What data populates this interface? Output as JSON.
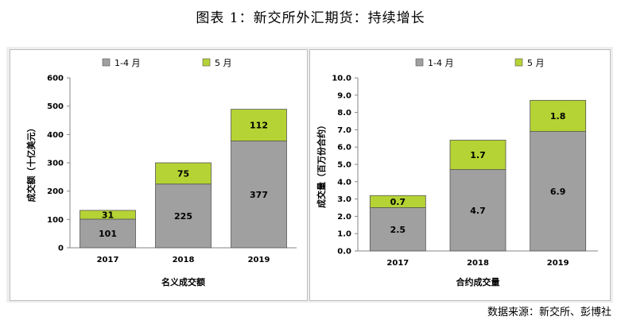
{
  "page": {
    "title": "图表 1：新交所外汇期货：持续增长",
    "source": "数据来源：新交所、彭博社"
  },
  "colors": {
    "series_1_4": "#a0a0a0",
    "series_may": "#b5d334",
    "bar_border": "#555555",
    "panel_background": "#eeeeee"
  },
  "chart_data": [
    {
      "type": "bar",
      "stacked": true,
      "title": "",
      "xlabel": "名义成交额",
      "ylabel": "成交额（十亿美元）",
      "categories": [
        "2017",
        "2018",
        "2019"
      ],
      "series": [
        {
          "name": "1-4 月",
          "values": [
            101,
            225,
            377
          ],
          "labels": [
            "101",
            "225",
            "377"
          ]
        },
        {
          "name": "5 月",
          "values": [
            31,
            75,
            112
          ],
          "labels": [
            "31",
            "75",
            "112"
          ]
        }
      ],
      "ylim": [
        0,
        600
      ],
      "yticks": [
        "0",
        "100",
        "200",
        "300",
        "400",
        "500",
        "600"
      ],
      "grid": false,
      "legend": "top"
    },
    {
      "type": "bar",
      "stacked": true,
      "title": "",
      "xlabel": "合约成交量",
      "ylabel": "成交量（百万份合约）",
      "categories": [
        "2017",
        "2018",
        "2019"
      ],
      "series": [
        {
          "name": "1-4 月",
          "values": [
            2.5,
            4.7,
            6.9
          ],
          "labels": [
            "2.5",
            "4.7",
            "6.9"
          ]
        },
        {
          "name": "5 月",
          "values": [
            0.7,
            1.7,
            1.8
          ],
          "labels": [
            "0.7",
            "1.7",
            "1.8"
          ]
        }
      ],
      "ylim": [
        0,
        10
      ],
      "yticks": [
        "0.0",
        "1.0",
        "2.0",
        "3.0",
        "4.0",
        "5.0",
        "6.0",
        "7.0",
        "8.0",
        "9.0",
        "10.0"
      ],
      "grid": false,
      "legend": "top"
    }
  ]
}
